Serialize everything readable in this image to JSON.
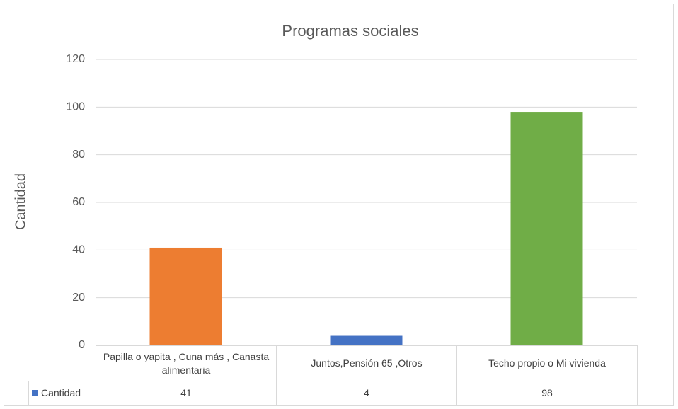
{
  "chart_data": {
    "type": "bar",
    "title": "Programas sociales",
    "y_label": "Cantidad",
    "categories": [
      "Papilla o yapita , Cuna más , Canasta alimentaria",
      "Juntos,Pensión 65 ,Otros",
      "Techo propio o Mi vivienda"
    ],
    "series": [
      {
        "name": "Cantidad",
        "color": "#4472c4",
        "point_colors": [
          "#ed7d31",
          "#4472c4",
          "#70ad47"
        ],
        "values": [
          41,
          4,
          98
        ]
      }
    ],
    "ylim": [
      0,
      120
    ],
    "yticks": [
      0,
      20,
      40,
      60,
      80,
      100,
      120
    ],
    "grid": true,
    "data_table": true
  }
}
